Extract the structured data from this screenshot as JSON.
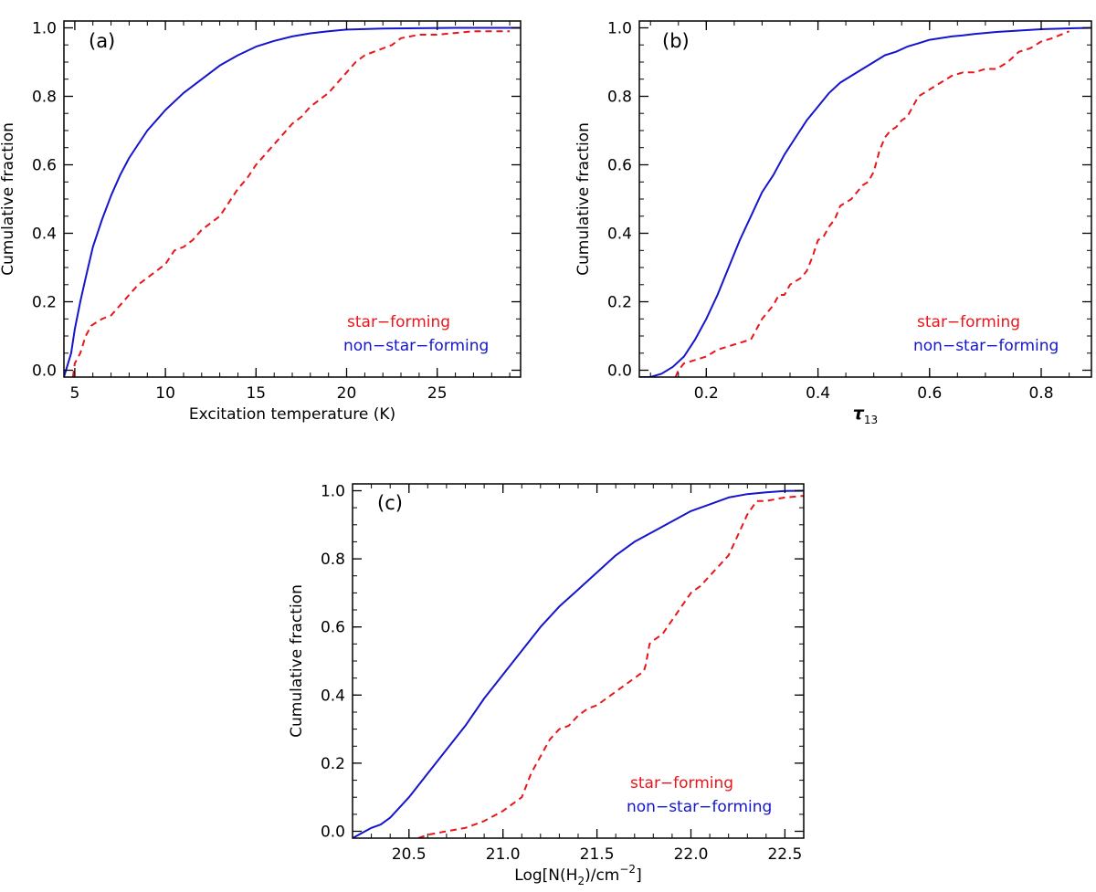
{
  "colors": {
    "star_forming": "#e8161b",
    "non_star_forming": "#1515cc",
    "axis": "#000000"
  },
  "chart_data": [
    {
      "type": "line",
      "panel_label": "(a)",
      "xlabel": "Excitation temperature (K)",
      "ylabel": "Cumulative fraction",
      "xlim": [
        4.4,
        29.6
      ],
      "ylim": [
        -0.02,
        1.02
      ],
      "xticks": [
        5,
        10,
        15,
        20,
        25
      ],
      "xtick_labels": [
        "5",
        "10",
        "15",
        "20",
        "25"
      ],
      "xminor": 1,
      "yticks": [
        0,
        0.2,
        0.4,
        0.6,
        0.8,
        1.0
      ],
      "ytick_labels": [
        "0.0",
        "0.2",
        "0.4",
        "0.6",
        "0.8",
        "1.0"
      ],
      "yminor": 0.05,
      "legend": [
        "star−forming",
        "non−star−forming"
      ],
      "legend_position": "bottom-right",
      "series": [
        {
          "name": "non-star-forming",
          "style": "solid",
          "x": [
            4.4,
            4.8,
            5.0,
            5.3,
            5.6,
            6.0,
            6.5,
            7.0,
            7.5,
            8.0,
            8.5,
            9.0,
            9.5,
            10.0,
            11.0,
            12.0,
            13.0,
            14.0,
            15.0,
            16.0,
            17.0,
            18.0,
            19.0,
            20.0,
            22.0,
            24.0,
            26.0,
            28.0,
            29.6
          ],
          "y": [
            -0.02,
            0.05,
            0.12,
            0.2,
            0.27,
            0.36,
            0.44,
            0.51,
            0.57,
            0.62,
            0.66,
            0.7,
            0.73,
            0.76,
            0.81,
            0.85,
            0.89,
            0.92,
            0.945,
            0.962,
            0.975,
            0.984,
            0.99,
            0.995,
            0.998,
            0.999,
            1.0,
            1.0,
            1.0
          ]
        },
        {
          "name": "star-forming",
          "style": "dashed",
          "x": [
            4.9,
            5.0,
            5.3,
            5.6,
            5.9,
            6.2,
            6.5,
            7.0,
            7.5,
            8.0,
            8.5,
            9.0,
            9.5,
            10.0,
            10.5,
            11.0,
            11.5,
            12.0,
            12.5,
            13.0,
            13.5,
            14.0,
            14.5,
            15.0,
            15.5,
            16.0,
            16.5,
            17.0,
            17.5,
            18.0,
            18.5,
            19.0,
            19.5,
            20.0,
            20.5,
            21.0,
            21.5,
            22.0,
            22.5,
            23.0,
            24.0,
            25.0,
            26.0,
            27.0,
            28.0,
            29.0
          ],
          "y": [
            -0.02,
            0.02,
            0.05,
            0.1,
            0.13,
            0.14,
            0.15,
            0.16,
            0.19,
            0.22,
            0.25,
            0.27,
            0.29,
            0.31,
            0.35,
            0.36,
            0.38,
            0.41,
            0.43,
            0.45,
            0.49,
            0.53,
            0.56,
            0.6,
            0.63,
            0.66,
            0.69,
            0.72,
            0.74,
            0.77,
            0.79,
            0.81,
            0.84,
            0.87,
            0.9,
            0.92,
            0.93,
            0.94,
            0.95,
            0.97,
            0.98,
            0.98,
            0.985,
            0.99,
            0.99,
            0.99
          ]
        }
      ]
    },
    {
      "type": "line",
      "panel_label": "(b)",
      "xlabel": "τ",
      "xlabel_sub": "13",
      "ylabel": "Cumulative fraction",
      "xlim": [
        0.08,
        0.89
      ],
      "ylim": [
        -0.02,
        1.02
      ],
      "xticks": [
        0.2,
        0.4,
        0.6,
        0.8
      ],
      "xtick_labels": [
        "0.2",
        "0.4",
        "0.6",
        "0.8"
      ],
      "xminor": 0.05,
      "yticks": [
        0,
        0.2,
        0.4,
        0.6,
        0.8,
        1.0
      ],
      "ytick_labels": [
        "0.0",
        "0.2",
        "0.4",
        "0.6",
        "0.8",
        "1.0"
      ],
      "yminor": 0.05,
      "legend": [
        "star−forming",
        "non−star−forming"
      ],
      "legend_position": "bottom-right",
      "series": [
        {
          "name": "non-star-forming",
          "style": "solid",
          "x": [
            0.08,
            0.1,
            0.12,
            0.14,
            0.16,
            0.18,
            0.2,
            0.22,
            0.24,
            0.26,
            0.28,
            0.3,
            0.32,
            0.34,
            0.36,
            0.38,
            0.4,
            0.42,
            0.44,
            0.46,
            0.48,
            0.5,
            0.52,
            0.54,
            0.56,
            0.58,
            0.6,
            0.62,
            0.64,
            0.66,
            0.68,
            0.7,
            0.72,
            0.74,
            0.76,
            0.78,
            0.8,
            0.82,
            0.84,
            0.86,
            0.89
          ],
          "y": [
            -0.02,
            -0.02,
            -0.01,
            0.01,
            0.04,
            0.09,
            0.15,
            0.22,
            0.3,
            0.38,
            0.45,
            0.52,
            0.57,
            0.63,
            0.68,
            0.73,
            0.77,
            0.81,
            0.84,
            0.86,
            0.88,
            0.9,
            0.92,
            0.93,
            0.945,
            0.955,
            0.965,
            0.97,
            0.975,
            0.978,
            0.982,
            0.985,
            0.988,
            0.99,
            0.992,
            0.994,
            0.996,
            0.997,
            0.998,
            0.999,
            1.0
          ]
        },
        {
          "name": "star-forming",
          "style": "dashed",
          "x": [
            0.145,
            0.15,
            0.16,
            0.18,
            0.2,
            0.22,
            0.24,
            0.26,
            0.28,
            0.3,
            0.32,
            0.33,
            0.34,
            0.35,
            0.36,
            0.37,
            0.38,
            0.39,
            0.4,
            0.41,
            0.42,
            0.43,
            0.44,
            0.45,
            0.46,
            0.47,
            0.48,
            0.49,
            0.5,
            0.51,
            0.52,
            0.53,
            0.54,
            0.55,
            0.56,
            0.57,
            0.58,
            0.59,
            0.6,
            0.62,
            0.64,
            0.66,
            0.68,
            0.7,
            0.72,
            0.74,
            0.76,
            0.78,
            0.8,
            0.82,
            0.85
          ],
          "y": [
            -0.02,
            0.0,
            0.02,
            0.03,
            0.04,
            0.06,
            0.07,
            0.08,
            0.09,
            0.15,
            0.19,
            0.22,
            0.22,
            0.25,
            0.26,
            0.27,
            0.29,
            0.33,
            0.38,
            0.39,
            0.42,
            0.44,
            0.48,
            0.49,
            0.5,
            0.52,
            0.54,
            0.55,
            0.58,
            0.64,
            0.68,
            0.7,
            0.71,
            0.73,
            0.74,
            0.77,
            0.8,
            0.81,
            0.82,
            0.84,
            0.86,
            0.87,
            0.87,
            0.88,
            0.88,
            0.9,
            0.93,
            0.94,
            0.96,
            0.97,
            0.99
          ]
        }
      ]
    },
    {
      "type": "line",
      "panel_label": "(c)",
      "xlabel": "Log[N(H",
      "xlabel_sub": "2",
      "xlabel_rest": ")/cm",
      "xlabel_sup": "−2",
      "xlabel_end": "]",
      "ylabel": "Cumulative fraction",
      "xlim": [
        20.2,
        22.6
      ],
      "ylim": [
        -0.02,
        1.02
      ],
      "xticks": [
        20.5,
        21.0,
        21.5,
        22.0,
        22.5
      ],
      "xtick_labels": [
        "20.5",
        "21.0",
        "21.5",
        "22.0",
        "22.5"
      ],
      "xminor": 0.1,
      "yticks": [
        0,
        0.2,
        0.4,
        0.6,
        0.8,
        1.0
      ],
      "ytick_labels": [
        "0.0",
        "0.2",
        "0.4",
        "0.6",
        "0.8",
        "1.0"
      ],
      "yminor": 0.05,
      "legend": [
        "star−forming",
        "non−star−forming"
      ],
      "legend_position": "bottom-right",
      "series": [
        {
          "name": "non-star-forming",
          "style": "solid",
          "x": [
            20.2,
            20.3,
            20.35,
            20.4,
            20.5,
            20.6,
            20.7,
            20.8,
            20.9,
            21.0,
            21.1,
            21.2,
            21.3,
            21.4,
            21.5,
            21.6,
            21.7,
            21.8,
            21.9,
            22.0,
            22.1,
            22.2,
            22.3,
            22.4,
            22.5,
            22.6
          ],
          "y": [
            -0.02,
            0.01,
            0.02,
            0.04,
            0.1,
            0.17,
            0.24,
            0.31,
            0.39,
            0.46,
            0.53,
            0.6,
            0.66,
            0.71,
            0.76,
            0.81,
            0.85,
            0.88,
            0.91,
            0.94,
            0.96,
            0.98,
            0.99,
            0.995,
            0.999,
            1.0
          ]
        },
        {
          "name": "star-forming",
          "style": "dashed",
          "x": [
            20.55,
            20.6,
            20.7,
            20.8,
            20.85,
            20.9,
            21.0,
            21.05,
            21.1,
            21.15,
            21.2,
            21.25,
            21.3,
            21.35,
            21.4,
            21.45,
            21.5,
            21.55,
            21.6,
            21.65,
            21.7,
            21.75,
            21.76,
            21.78,
            21.8,
            21.85,
            21.9,
            21.95,
            22.0,
            22.05,
            22.1,
            22.15,
            22.2,
            22.25,
            22.3,
            22.35,
            22.4,
            22.5,
            22.6
          ],
          "y": [
            -0.02,
            -0.01,
            0.0,
            0.01,
            0.02,
            0.03,
            0.06,
            0.08,
            0.1,
            0.17,
            0.22,
            0.27,
            0.3,
            0.31,
            0.34,
            0.36,
            0.37,
            0.39,
            0.41,
            0.43,
            0.45,
            0.47,
            0.49,
            0.55,
            0.56,
            0.58,
            0.62,
            0.66,
            0.7,
            0.72,
            0.75,
            0.78,
            0.81,
            0.87,
            0.93,
            0.97,
            0.97,
            0.98,
            0.985
          ]
        }
      ]
    }
  ]
}
